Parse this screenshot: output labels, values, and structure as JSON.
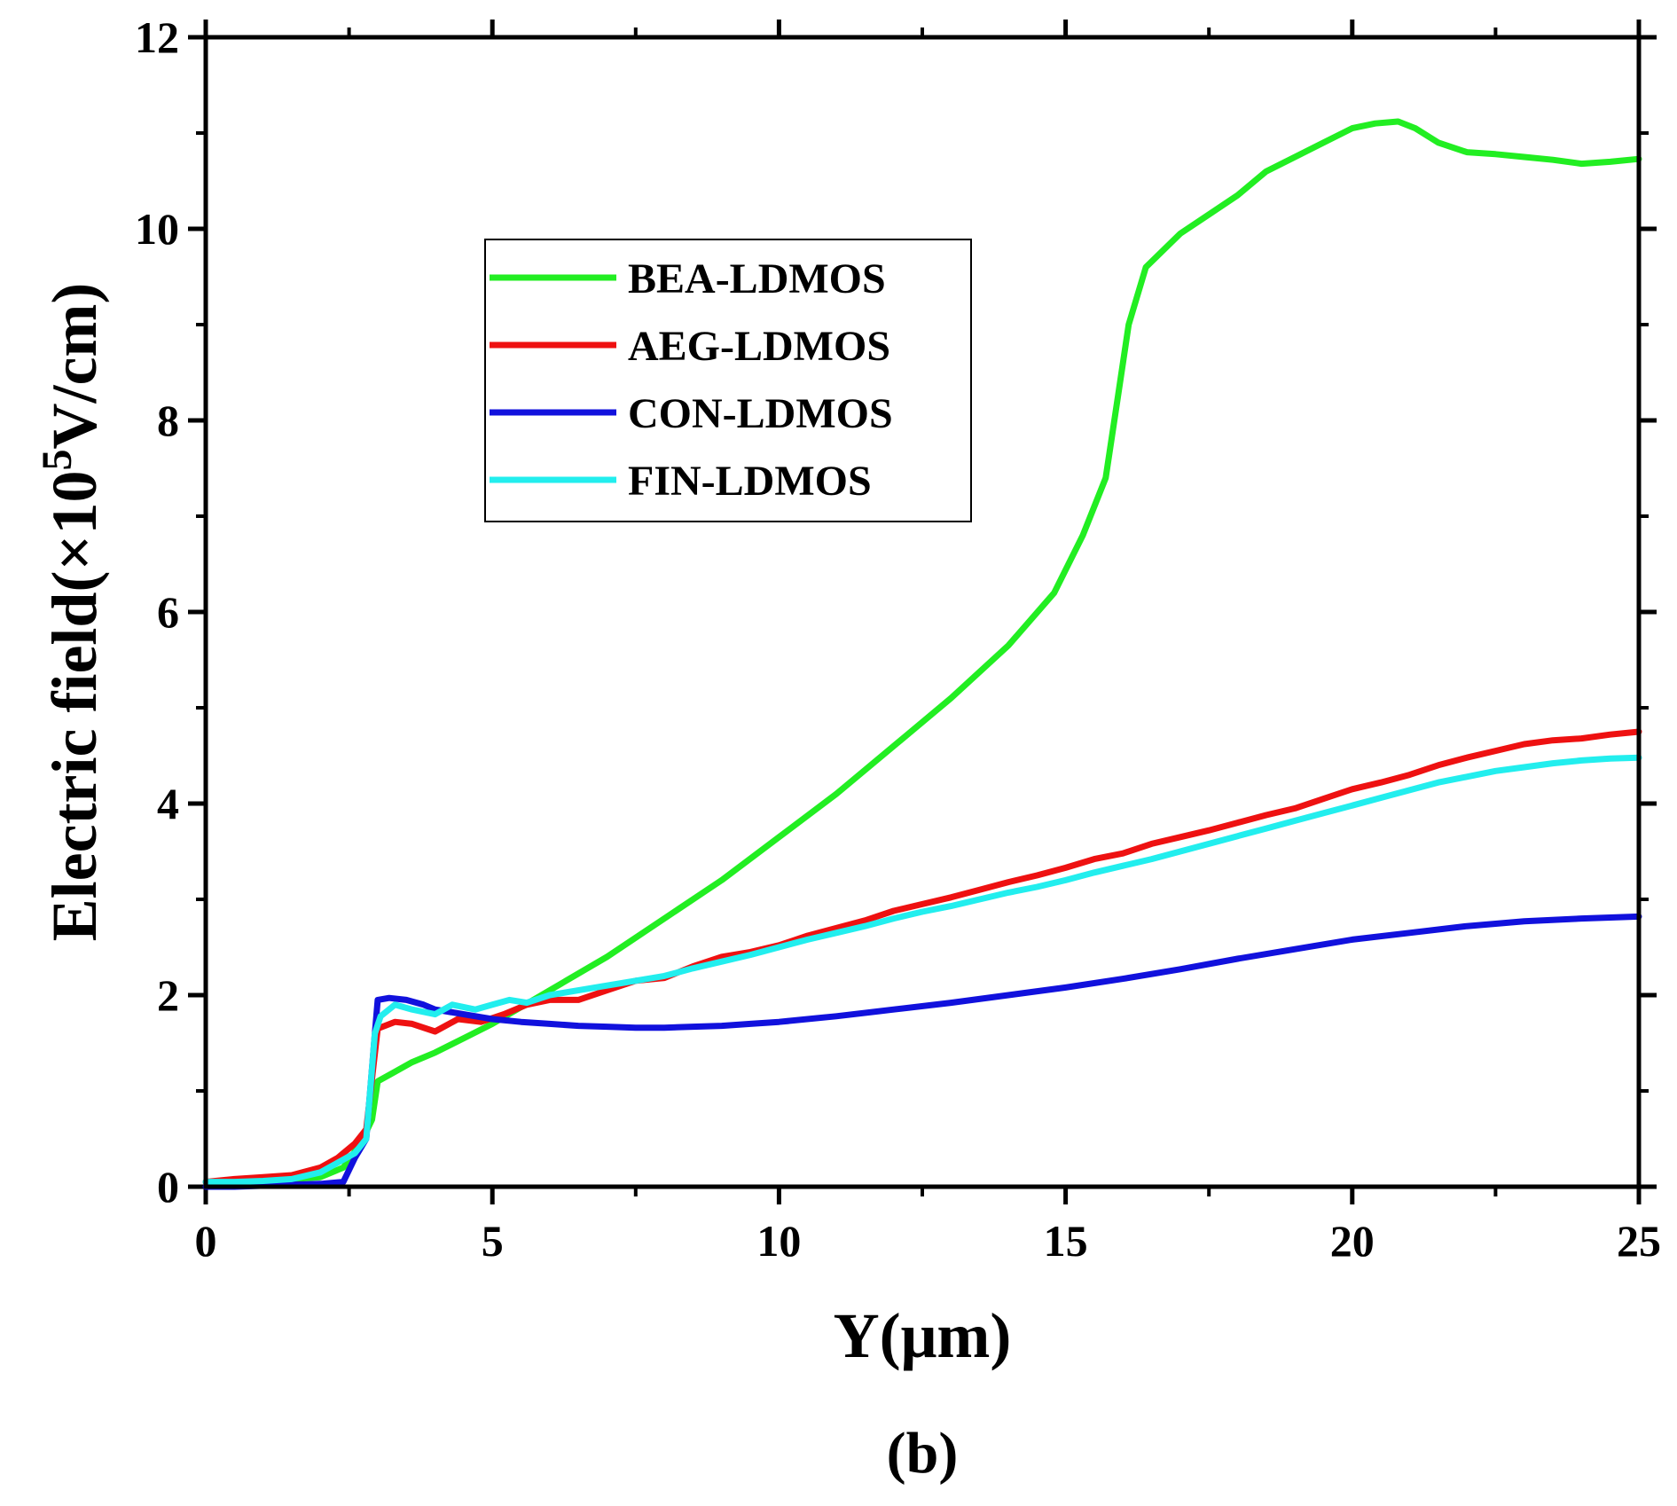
{
  "chart_data": {
    "type": "line",
    "title": "",
    "caption": "(b)",
    "xlabel": "Y(μm)",
    "ylabel": "Electric field(×10⁵V/cm)",
    "ylabel_parts": {
      "prefix": "Electric field(×10",
      "sup": "5",
      "suffix": "V/cm)"
    },
    "xlim": [
      0,
      25
    ],
    "ylim": [
      0,
      12
    ],
    "xticks": [
      0,
      5,
      10,
      15,
      20,
      25
    ],
    "xtick_labels": [
      "0",
      "5",
      "10",
      "15",
      "20",
      "25"
    ],
    "yticks": [
      0,
      2,
      4,
      6,
      8,
      10,
      12
    ],
    "ytick_labels": [
      "0",
      "2",
      "4",
      "6",
      "8",
      "10",
      "12"
    ],
    "grid": false,
    "legend_position": "upper-left",
    "series": [
      {
        "name": "BEA-LDMOS",
        "color": "#22ee22",
        "x": [
          0,
          0.5,
          1.0,
          1.5,
          2.0,
          2.4,
          2.7,
          2.9,
          3.0,
          3.3,
          3.6,
          4.0,
          4.5,
          5.0,
          6.0,
          7.0,
          8.0,
          9.0,
          10.0,
          11.0,
          12.0,
          13.0,
          14.0,
          14.8,
          15.3,
          15.7,
          15.9,
          16.1,
          16.4,
          17.0,
          17.5,
          18.0,
          18.5,
          19.0,
          19.5,
          20.0,
          20.4,
          20.8,
          21.1,
          21.5,
          22.0,
          22.5,
          23.0,
          23.5,
          24.0,
          24.5,
          25.0
        ],
        "values": [
          0.05,
          0.05,
          0.07,
          0.08,
          0.1,
          0.2,
          0.45,
          0.7,
          1.1,
          1.2,
          1.3,
          1.4,
          1.55,
          1.7,
          2.05,
          2.4,
          2.8,
          3.2,
          3.65,
          4.1,
          4.6,
          5.1,
          5.65,
          6.2,
          6.8,
          7.4,
          8.2,
          9.0,
          9.6,
          9.95,
          10.15,
          10.35,
          10.6,
          10.75,
          10.9,
          11.05,
          11.1,
          11.12,
          11.05,
          10.9,
          10.8,
          10.78,
          10.75,
          10.72,
          10.68,
          10.7,
          10.73
        ]
      },
      {
        "name": "AEG-LDMOS",
        "color": "#ee1111",
        "x": [
          0,
          0.5,
          1.0,
          1.5,
          2.0,
          2.3,
          2.6,
          2.8,
          3.0,
          3.3,
          3.6,
          4.0,
          4.4,
          4.8,
          5.2,
          5.6,
          6.0,
          6.5,
          7.0,
          7.5,
          8.0,
          8.5,
          9.0,
          9.5,
          10.0,
          10.5,
          11.0,
          11.5,
          12.0,
          12.5,
          13.0,
          13.5,
          14.0,
          14.5,
          15.0,
          15.5,
          16.0,
          16.5,
          17.0,
          17.5,
          18.0,
          18.5,
          19.0,
          19.5,
          20.0,
          20.5,
          21.0,
          21.5,
          22.0,
          22.5,
          23.0,
          23.5,
          24.0,
          24.5,
          25.0
        ],
        "values": [
          0.05,
          0.08,
          0.1,
          0.12,
          0.2,
          0.3,
          0.45,
          0.6,
          1.65,
          1.72,
          1.7,
          1.62,
          1.75,
          1.72,
          1.8,
          1.9,
          1.95,
          1.95,
          2.05,
          2.15,
          2.18,
          2.3,
          2.4,
          2.45,
          2.52,
          2.62,
          2.7,
          2.78,
          2.88,
          2.95,
          3.02,
          3.1,
          3.18,
          3.25,
          3.33,
          3.42,
          3.48,
          3.58,
          3.65,
          3.72,
          3.8,
          3.88,
          3.95,
          4.05,
          4.15,
          4.22,
          4.3,
          4.4,
          4.48,
          4.55,
          4.62,
          4.66,
          4.68,
          4.72,
          4.75
        ]
      },
      {
        "name": "CON-LDMOS",
        "color": "#1111dd",
        "x": [
          0,
          0.5,
          1.0,
          1.5,
          2.0,
          2.4,
          2.6,
          2.8,
          2.95,
          3.0,
          3.2,
          3.5,
          3.8,
          4.0,
          4.5,
          5.0,
          5.5,
          6.0,
          6.5,
          7.0,
          7.5,
          8.0,
          8.5,
          9.0,
          9.5,
          10.0,
          11.0,
          12.0,
          13.0,
          14.0,
          15.0,
          16.0,
          17.0,
          18.0,
          19.0,
          20.0,
          21.0,
          22.0,
          23.0,
          24.0,
          25.0
        ],
        "values": [
          0.0,
          0.0,
          0.01,
          0.02,
          0.03,
          0.05,
          0.3,
          0.5,
          1.6,
          1.95,
          1.97,
          1.95,
          1.9,
          1.85,
          1.8,
          1.75,
          1.72,
          1.7,
          1.68,
          1.67,
          1.66,
          1.66,
          1.67,
          1.68,
          1.7,
          1.72,
          1.78,
          1.85,
          1.92,
          2.0,
          2.08,
          2.17,
          2.27,
          2.38,
          2.48,
          2.58,
          2.65,
          2.72,
          2.77,
          2.8,
          2.82
        ]
      },
      {
        "name": "FIN-LDMOS",
        "color": "#22eeee",
        "x": [
          0,
          0.5,
          1.0,
          1.5,
          2.0,
          2.3,
          2.6,
          2.8,
          2.95,
          3.05,
          3.3,
          3.6,
          4.0,
          4.3,
          4.7,
          5.0,
          5.3,
          5.6,
          6.0,
          6.5,
          7.0,
          7.5,
          8.0,
          8.5,
          9.0,
          9.5,
          10.0,
          10.5,
          11.0,
          11.5,
          12.0,
          12.5,
          13.0,
          13.5,
          14.0,
          14.5,
          15.0,
          15.5,
          16.0,
          16.5,
          17.0,
          17.5,
          18.0,
          18.5,
          19.0,
          19.5,
          20.0,
          20.5,
          21.0,
          21.5,
          22.0,
          22.5,
          23.0,
          23.5,
          24.0,
          24.5,
          25.0
        ],
        "values": [
          0.05,
          0.05,
          0.06,
          0.08,
          0.15,
          0.25,
          0.35,
          0.5,
          1.6,
          1.78,
          1.9,
          1.85,
          1.8,
          1.9,
          1.85,
          1.9,
          1.95,
          1.92,
          2.0,
          2.05,
          2.1,
          2.15,
          2.2,
          2.28,
          2.35,
          2.42,
          2.5,
          2.58,
          2.65,
          2.72,
          2.8,
          2.87,
          2.93,
          3.0,
          3.07,
          3.13,
          3.2,
          3.28,
          3.35,
          3.42,
          3.5,
          3.58,
          3.66,
          3.74,
          3.82,
          3.9,
          3.98,
          4.06,
          4.14,
          4.22,
          4.28,
          4.34,
          4.38,
          4.42,
          4.45,
          4.47,
          4.48
        ]
      }
    ]
  }
}
